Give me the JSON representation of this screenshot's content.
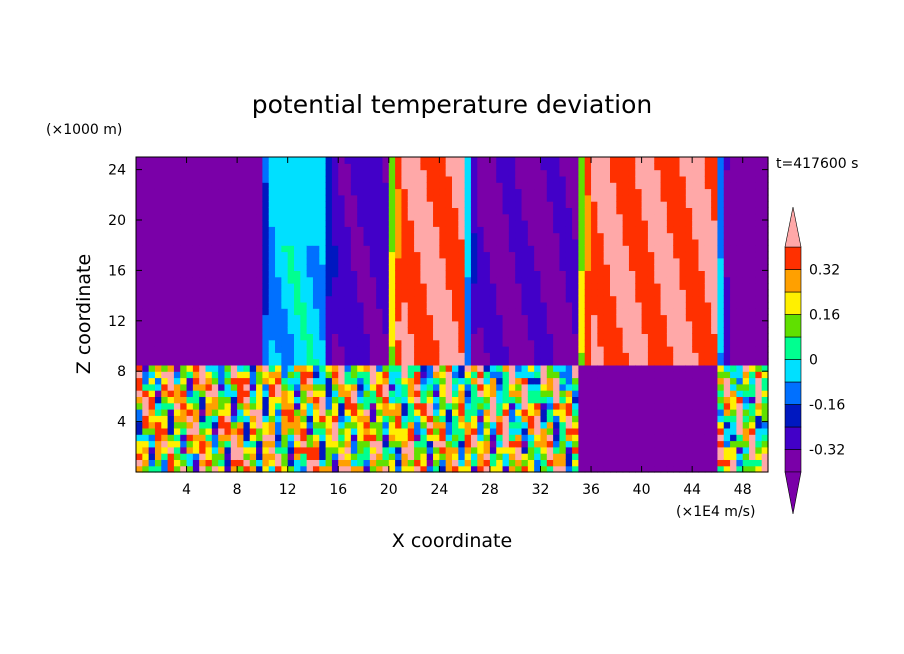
{
  "chart_data": {
    "type": "heatmap",
    "title": "potential temperature deviation",
    "xlabel": "X coordinate",
    "ylabel": "Z coordinate",
    "x_unit": "(×1E4 m/s)",
    "y_unit": "(×1000 m)",
    "time_label": "t=417600 s",
    "xlim": [
      0,
      50
    ],
    "ylim": [
      0,
      25
    ],
    "x_ticks": [
      4,
      8,
      12,
      16,
      20,
      24,
      28,
      32,
      36,
      40,
      44,
      48
    ],
    "y_ticks": [
      4,
      8,
      12,
      16,
      20,
      24
    ],
    "colorbar": {
      "levels": [
        -0.4,
        -0.32,
        -0.24,
        -0.16,
        -0.08,
        0,
        0.08,
        0.16,
        0.24,
        0.32,
        0.4
      ],
      "tick_labels": [
        "0.32",
        "0.16",
        "0",
        "-0.16",
        "-0.32"
      ],
      "tick_values": [
        0.32,
        0.16,
        0,
        -0.16,
        -0.32
      ],
      "colors": [
        "#7a00a8",
        "#4200c8",
        "#0018c0",
        "#0070ff",
        "#00e0ff",
        "#00ff90",
        "#60e000",
        "#fff000",
        "#ffa000",
        "#ff3000",
        "#ffa8a8"
      ]
    },
    "field": {
      "description_x_bands": [
        {
          "x_from": 0,
          "x_to": 9,
          "upper_value": -0.38
        },
        {
          "x_from": 10,
          "x_to": 15,
          "upper_value": -0.05
        },
        {
          "x_from": 15,
          "x_to": 20,
          "upper_value": -0.3
        },
        {
          "x_from": 20,
          "x_to": 26,
          "upper_value": 0.4
        },
        {
          "x_from": 26,
          "x_to": 35,
          "upper_value": -0.33
        },
        {
          "x_from": 35,
          "x_to": 46,
          "upper_value": 0.4
        },
        {
          "x_from": 46,
          "x_to": 50,
          "upper_value": -0.38
        }
      ],
      "interface_z": 8.6
    }
  }
}
